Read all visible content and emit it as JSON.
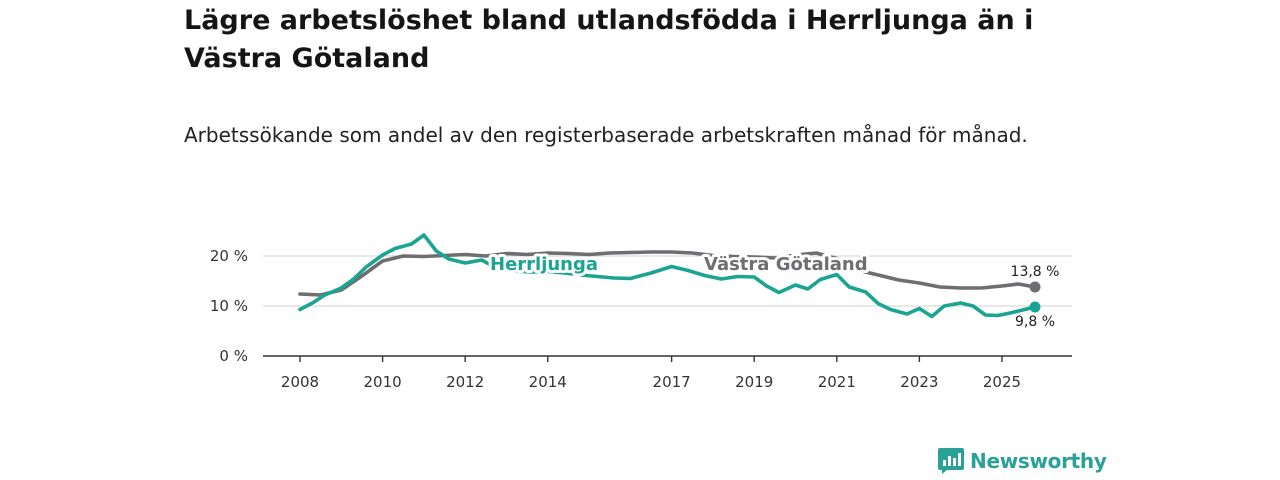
{
  "title": "Lägre arbetslöshet bland utlandsfödda i Herrljunga än i Västra Götaland",
  "subtitle": "Arbetssökande som andel av den registerbaserade arbetskraften månad för månad.",
  "brand": {
    "name": "Newsworthy",
    "color": "#2aa197"
  },
  "chart_data": {
    "type": "line",
    "title": "",
    "xlabel": "",
    "ylabel": "",
    "x_ticks": [
      "2008",
      "2010",
      "2012",
      "2014",
      "2017",
      "2019",
      "2021",
      "2023",
      "2025"
    ],
    "y_ticks": [
      "0 %",
      "10 %",
      "20 %"
    ],
    "ylim": [
      0,
      26
    ],
    "grid": "horizontal",
    "series": [
      {
        "name": "Västra Götaland",
        "color": "#6e6d72",
        "end_label": "13,8 %",
        "points": [
          [
            2008.0,
            12.4
          ],
          [
            2008.5,
            12.2
          ],
          [
            2009.0,
            13.2
          ],
          [
            2009.5,
            16.0
          ],
          [
            2010.0,
            19.0
          ],
          [
            2010.5,
            20.0
          ],
          [
            2011.0,
            19.9
          ],
          [
            2011.5,
            20.1
          ],
          [
            2012.0,
            20.3
          ],
          [
            2012.5,
            20.0
          ],
          [
            2013.0,
            20.5
          ],
          [
            2013.5,
            20.3
          ],
          [
            2014.0,
            20.6
          ],
          [
            2014.5,
            20.5
          ],
          [
            2015.0,
            20.3
          ],
          [
            2015.5,
            20.6
          ],
          [
            2016.0,
            20.7
          ],
          [
            2016.5,
            20.8
          ],
          [
            2017.0,
            20.8
          ],
          [
            2017.5,
            20.6
          ],
          [
            2018.0,
            20.1
          ],
          [
            2018.5,
            19.9
          ],
          [
            2019.0,
            19.8
          ],
          [
            2019.5,
            19.6
          ],
          [
            2020.0,
            20.2
          ],
          [
            2020.5,
            20.6
          ],
          [
            2021.0,
            19.5
          ],
          [
            2021.5,
            17.2
          ],
          [
            2022.0,
            16.2
          ],
          [
            2022.5,
            15.2
          ],
          [
            2023.0,
            14.6
          ],
          [
            2023.5,
            13.8
          ],
          [
            2024.0,
            13.6
          ],
          [
            2024.5,
            13.6
          ],
          [
            2025.0,
            14.0
          ],
          [
            2025.4,
            14.4
          ],
          [
            2025.8,
            13.8
          ]
        ]
      },
      {
        "name": "Herrljunga",
        "color": "#1aa592",
        "end_label": "9,8 %",
        "points": [
          [
            2008.0,
            9.3
          ],
          [
            2008.3,
            10.6
          ],
          [
            2008.6,
            12.2
          ],
          [
            2009.0,
            13.6
          ],
          [
            2009.3,
            15.4
          ],
          [
            2009.6,
            17.8
          ],
          [
            2010.0,
            20.2
          ],
          [
            2010.3,
            21.5
          ],
          [
            2010.7,
            22.4
          ],
          [
            2011.0,
            24.2
          ],
          [
            2011.3,
            21.0
          ],
          [
            2011.6,
            19.4
          ],
          [
            2012.0,
            18.6
          ],
          [
            2012.4,
            19.2
          ],
          [
            2012.8,
            17.4
          ],
          [
            2013.2,
            17.0
          ],
          [
            2013.6,
            16.8
          ],
          [
            2014.0,
            16.9
          ],
          [
            2014.4,
            16.6
          ],
          [
            2014.8,
            16.2
          ],
          [
            2015.2,
            15.9
          ],
          [
            2015.6,
            15.6
          ],
          [
            2016.0,
            15.5
          ],
          [
            2016.5,
            16.6
          ],
          [
            2017.0,
            17.9
          ],
          [
            2017.4,
            17.1
          ],
          [
            2017.8,
            16.1
          ],
          [
            2018.2,
            15.4
          ],
          [
            2018.6,
            15.9
          ],
          [
            2019.0,
            15.8
          ],
          [
            2019.3,
            14.0
          ],
          [
            2019.6,
            12.7
          ],
          [
            2020.0,
            14.2
          ],
          [
            2020.3,
            13.4
          ],
          [
            2020.6,
            15.3
          ],
          [
            2021.0,
            16.3
          ],
          [
            2021.3,
            13.8
          ],
          [
            2021.7,
            12.8
          ],
          [
            2022.0,
            10.5
          ],
          [
            2022.3,
            9.3
          ],
          [
            2022.7,
            8.4
          ],
          [
            2023.0,
            9.5
          ],
          [
            2023.3,
            7.9
          ],
          [
            2023.6,
            10.0
          ],
          [
            2024.0,
            10.6
          ],
          [
            2024.3,
            10.0
          ],
          [
            2024.6,
            8.2
          ],
          [
            2024.9,
            8.1
          ],
          [
            2025.2,
            8.6
          ],
          [
            2025.5,
            9.2
          ],
          [
            2025.8,
            9.8
          ]
        ]
      }
    ]
  }
}
